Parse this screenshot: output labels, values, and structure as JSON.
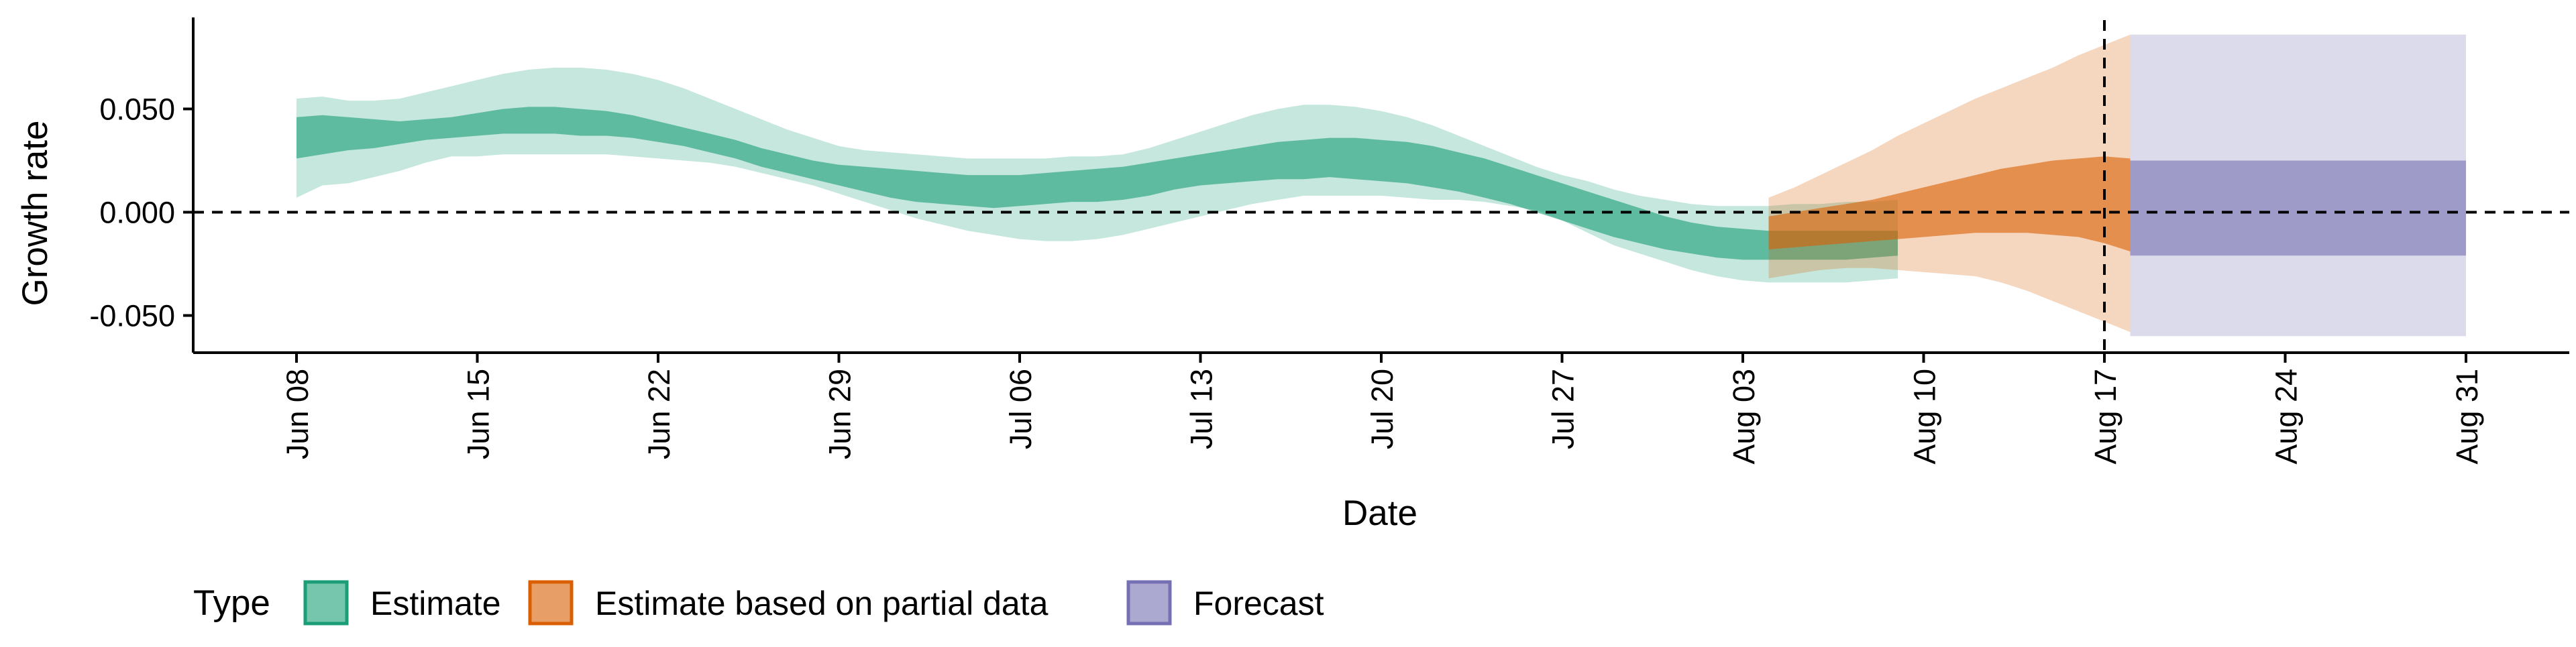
{
  "chart_data": {
    "type": "area",
    "xlabel": "Date",
    "ylabel": "Growth rate",
    "x_ticks": [
      "Jun 08",
      "Jun 15",
      "Jun 22",
      "Jun 29",
      "Jul 06",
      "Jul 13",
      "Jul 20",
      "Jul 27",
      "Aug 03",
      "Aug 10",
      "Aug 17",
      "Aug 24",
      "Aug 31"
    ],
    "xlim": [
      "2020-06-04",
      "2020-09-04"
    ],
    "y_ticks": [
      "0.050",
      "0.000",
      "-0.050"
    ],
    "ylim": [
      -0.068,
      0.093
    ],
    "reference_lines": {
      "horizontal_y": 0.0,
      "vertical_date": "2020-08-17"
    },
    "legend": {
      "title": "Type",
      "position": "bottom",
      "entries": [
        "Estimate",
        "Estimate based on partial data",
        "Forecast"
      ]
    },
    "colors": {
      "estimate": "#1B9E77",
      "partial": "#D95F02",
      "forecast": "#7570B3"
    },
    "series": [
      {
        "name": "Estimate",
        "start_date": "2020-06-08",
        "step_days": 1,
        "lower_90": [
          0.007,
          0.013,
          0.014,
          0.017,
          0.02,
          0.024,
          0.027,
          0.027,
          0.028,
          0.028,
          0.028,
          0.028,
          0.028,
          0.027,
          0.026,
          0.025,
          0.024,
          0.022,
          0.019,
          0.016,
          0.013,
          0.009,
          0.005,
          0.001,
          -0.003,
          -0.006,
          -0.009,
          -0.011,
          -0.013,
          -0.014,
          -0.014,
          -0.013,
          -0.011,
          -0.008,
          -0.005,
          -0.002,
          0.001,
          0.004,
          0.006,
          0.008,
          0.008,
          0.008,
          0.008,
          0.007,
          0.006,
          0.006,
          0.005,
          0.003,
          0.001,
          -0.004,
          -0.01,
          -0.016,
          -0.02,
          -0.024,
          -0.028,
          -0.031,
          -0.033,
          -0.034,
          -0.034,
          -0.034,
          -0.034,
          -0.033,
          -0.032
        ],
        "lower_50": [
          0.026,
          0.028,
          0.03,
          0.031,
          0.033,
          0.035,
          0.036,
          0.037,
          0.038,
          0.038,
          0.038,
          0.037,
          0.037,
          0.036,
          0.034,
          0.032,
          0.029,
          0.026,
          0.022,
          0.019,
          0.016,
          0.013,
          0.01,
          0.007,
          0.005,
          0.004,
          0.003,
          0.002,
          0.003,
          0.004,
          0.005,
          0.005,
          0.006,
          0.008,
          0.011,
          0.013,
          0.014,
          0.015,
          0.016,
          0.016,
          0.017,
          0.016,
          0.015,
          0.014,
          0.012,
          0.01,
          0.007,
          0.004,
          0.0,
          -0.004,
          -0.008,
          -0.012,
          -0.015,
          -0.018,
          -0.02,
          -0.022,
          -0.023,
          -0.023,
          -0.023,
          -0.023,
          -0.023,
          -0.022,
          -0.021
        ],
        "upper_50": [
          0.046,
          0.047,
          0.046,
          0.045,
          0.044,
          0.045,
          0.046,
          0.048,
          0.05,
          0.051,
          0.051,
          0.05,
          0.049,
          0.047,
          0.044,
          0.041,
          0.038,
          0.035,
          0.031,
          0.028,
          0.025,
          0.023,
          0.022,
          0.021,
          0.02,
          0.019,
          0.018,
          0.018,
          0.018,
          0.019,
          0.02,
          0.021,
          0.022,
          0.024,
          0.026,
          0.028,
          0.03,
          0.032,
          0.034,
          0.035,
          0.036,
          0.036,
          0.035,
          0.034,
          0.032,
          0.029,
          0.026,
          0.022,
          0.018,
          0.014,
          0.01,
          0.006,
          0.002,
          -0.002,
          -0.005,
          -0.007,
          -0.008,
          -0.009,
          -0.009,
          -0.009,
          -0.009,
          -0.009,
          -0.009
        ],
        "upper_90": [
          0.055,
          0.056,
          0.054,
          0.054,
          0.055,
          0.058,
          0.061,
          0.064,
          0.067,
          0.069,
          0.07,
          0.07,
          0.069,
          0.067,
          0.064,
          0.06,
          0.055,
          0.05,
          0.045,
          0.04,
          0.036,
          0.032,
          0.03,
          0.029,
          0.028,
          0.027,
          0.026,
          0.026,
          0.026,
          0.026,
          0.027,
          0.027,
          0.028,
          0.031,
          0.035,
          0.039,
          0.043,
          0.047,
          0.05,
          0.052,
          0.052,
          0.051,
          0.049,
          0.046,
          0.042,
          0.037,
          0.032,
          0.027,
          0.022,
          0.018,
          0.015,
          0.011,
          0.008,
          0.006,
          0.004,
          0.003,
          0.003,
          0.003,
          0.004,
          0.004,
          0.005,
          0.005,
          0.006
        ]
      },
      {
        "name": "Estimate based on partial data",
        "start_date": "2020-08-04",
        "step_days": 1,
        "lower_90": [
          -0.032,
          -0.03,
          -0.028,
          -0.027,
          -0.027,
          -0.028,
          -0.029,
          -0.03,
          -0.031,
          -0.034,
          -0.038,
          -0.043,
          -0.048,
          -0.053,
          -0.058
        ],
        "lower_50": [
          -0.018,
          -0.017,
          -0.016,
          -0.015,
          -0.014,
          -0.013,
          -0.012,
          -0.011,
          -0.01,
          -0.01,
          -0.01,
          -0.011,
          -0.012,
          -0.015,
          -0.019
        ],
        "upper_50": [
          -0.002,
          0.0,
          0.002,
          0.004,
          0.006,
          0.009,
          0.012,
          0.015,
          0.018,
          0.021,
          0.023,
          0.025,
          0.026,
          0.027,
          0.026
        ],
        "upper_90": [
          0.007,
          0.012,
          0.018,
          0.024,
          0.03,
          0.037,
          0.043,
          0.049,
          0.055,
          0.06,
          0.065,
          0.07,
          0.076,
          0.081,
          0.086
        ]
      },
      {
        "name": "Forecast",
        "start_date": "2020-08-18",
        "end_date": "2020-08-31",
        "lower_90": -0.06,
        "lower_50": -0.021,
        "upper_50": 0.025,
        "upper_90": 0.086
      }
    ]
  }
}
